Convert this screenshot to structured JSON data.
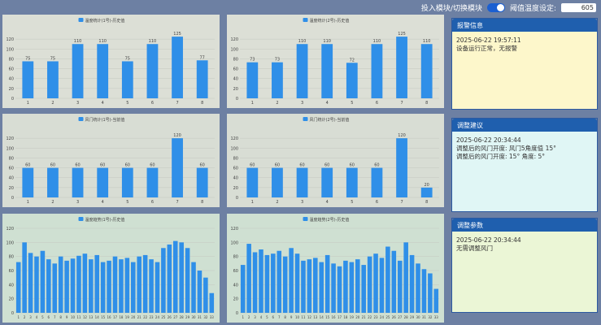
{
  "header": {
    "toggle_label": "投入模块/切换模块",
    "threshold_label": "阈值温度设定:",
    "threshold_value": "605"
  },
  "charts": [
    {
      "type": "bar",
      "title": "温度统计(1号)-历史值",
      "color": "#2f8fe8",
      "value_labels_shown": true,
      "ylim": [
        0,
        140
      ],
      "yticks": [
        0,
        20,
        40,
        60,
        80,
        100,
        120
      ],
      "categories": [
        "1",
        "2",
        "3",
        "4",
        "5",
        "6",
        "7",
        "8"
      ],
      "values": [
        75,
        75,
        110,
        110,
        75,
        110,
        125,
        77
      ]
    },
    {
      "type": "bar",
      "title": "温度统计(2号)-历史值",
      "color": "#2f8fe8",
      "value_labels_shown": true,
      "ylim": [
        0,
        140
      ],
      "yticks": [
        0,
        20,
        40,
        60,
        80,
        100,
        120
      ],
      "categories": [
        "1",
        "2",
        "3",
        "4",
        "5",
        "6",
        "7",
        "8"
      ],
      "values": [
        73,
        73,
        110,
        110,
        72,
        110,
        125,
        110
      ]
    },
    {
      "type": "bar",
      "title": "风门统计(1号)-当前值",
      "color": "#2f8fe8",
      "value_labels_shown": true,
      "ylim": [
        0,
        140
      ],
      "yticks": [
        0,
        20,
        40,
        60,
        80,
        100,
        120
      ],
      "categories": [
        "1",
        "2",
        "3",
        "4",
        "5",
        "6",
        "7",
        "8"
      ],
      "values": [
        60,
        60,
        60,
        60,
        60,
        60,
        120,
        60
      ]
    },
    {
      "type": "bar",
      "title": "风门统计(2号)-当前值",
      "color": "#2f8fe8",
      "value_labels_shown": true,
      "ylim": [
        0,
        140
      ],
      "yticks": [
        0,
        20,
        40,
        60,
        80,
        100,
        120
      ],
      "categories": [
        "1",
        "2",
        "3",
        "4",
        "5",
        "6",
        "7",
        "8"
      ],
      "values": [
        60,
        60,
        60,
        60,
        60,
        60,
        120,
        20
      ]
    },
    {
      "type": "bar",
      "title": "温度趋势(1号)-历史值",
      "color": "#2f8fe8",
      "value_labels_shown": false,
      "ylim": [
        0,
        120
      ],
      "yticks": [
        0,
        20,
        40,
        60,
        80,
        100,
        120
      ],
      "categories": [
        "1",
        "2",
        "3",
        "4",
        "5",
        "6",
        "7",
        "8",
        "9",
        "10",
        "11",
        "12",
        "13",
        "14",
        "15",
        "16",
        "17",
        "18",
        "19",
        "20",
        "21",
        "22",
        "23",
        "24",
        "25",
        "26",
        "27",
        "28",
        "29",
        "30",
        "31",
        "32",
        "33"
      ],
      "values": [
        72,
        100,
        85,
        80,
        88,
        76,
        70,
        80,
        74,
        77,
        81,
        84,
        76,
        82,
        72,
        74,
        80,
        76,
        78,
        72,
        80,
        82,
        76,
        72,
        92,
        97,
        102,
        100,
        92,
        72,
        60,
        50,
        28
      ]
    },
    {
      "type": "bar",
      "title": "温度趋势(2号)-历史值",
      "color": "#2f8fe8",
      "value_labels_shown": false,
      "ylim": [
        0,
        120
      ],
      "yticks": [
        0,
        20,
        40,
        60,
        80,
        100,
        120
      ],
      "categories": [
        "1",
        "2",
        "3",
        "4",
        "5",
        "6",
        "7",
        "8",
        "9",
        "10",
        "11",
        "12",
        "13",
        "14",
        "15",
        "16",
        "17",
        "18",
        "19",
        "20",
        "21",
        "22",
        "23",
        "24",
        "25",
        "26",
        "27",
        "28",
        "29",
        "30",
        "31",
        "32",
        "33"
      ],
      "values": [
        68,
        98,
        86,
        90,
        82,
        84,
        88,
        80,
        92,
        84,
        74,
        76,
        78,
        72,
        82,
        70,
        66,
        74,
        72,
        76,
        68,
        80,
        84,
        78,
        94,
        88,
        74,
        100,
        82,
        70,
        62,
        56,
        34
      ]
    }
  ],
  "panels": [
    {
      "title": "报警信息",
      "lines": [
        "2025-06-22 19:57:11",
        "设备运行正常，无报警"
      ]
    },
    {
      "title": "调整建议",
      "lines": [
        "2025-06-22 20:34:44",
        "调整后的风门开度: 风门5角度值 15°",
        "调整后的风门开度: 15° 角度: 5°"
      ]
    },
    {
      "title": "调整参数",
      "lines": [
        "2025-06-22 20:34:44",
        "无需调整风门"
      ]
    }
  ]
}
